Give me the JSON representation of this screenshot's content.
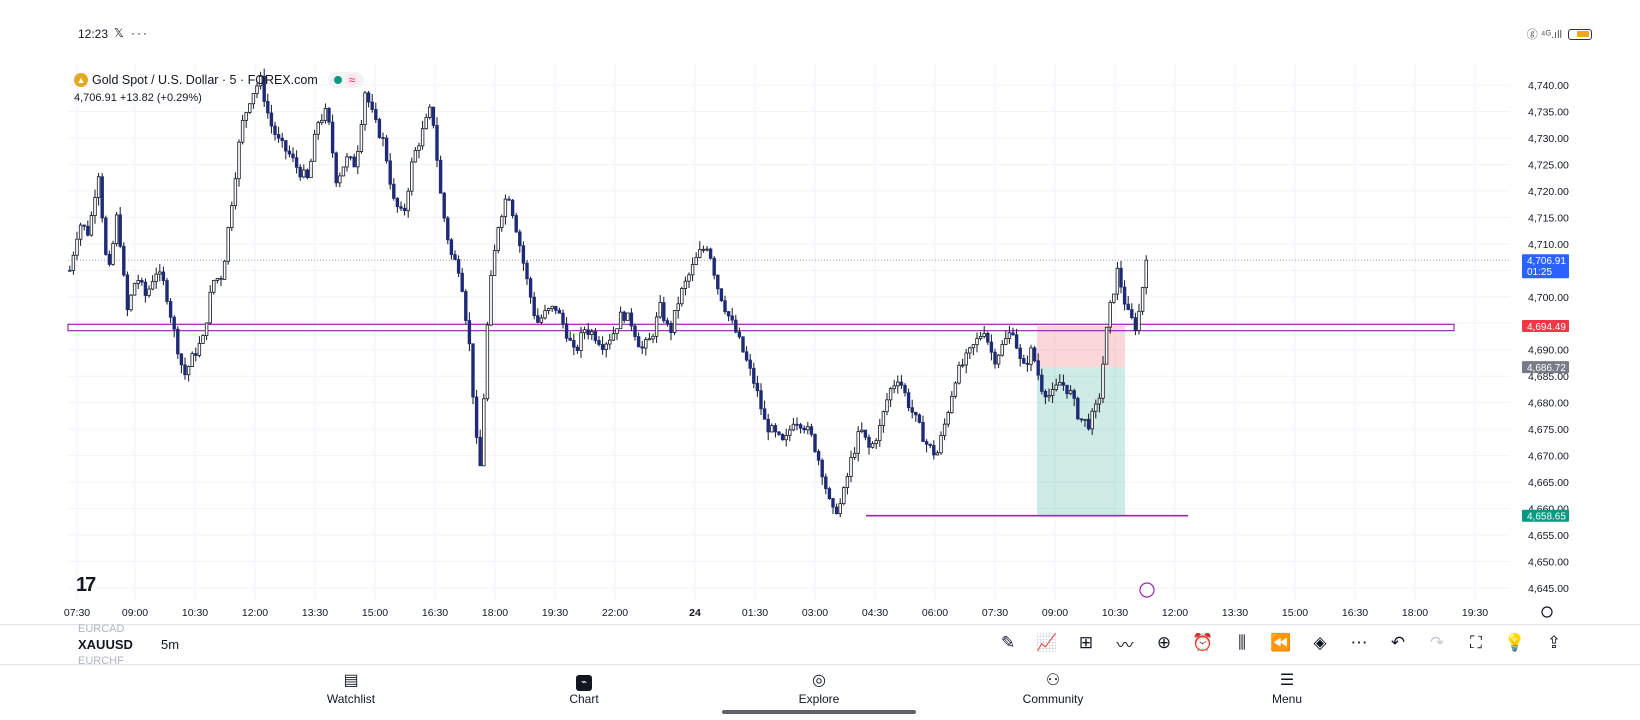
{
  "status": {
    "time": "12:23",
    "extra": "𝕏 ···",
    "signal": "ⓖ ⁴ᴳ.ıll"
  },
  "legend": {
    "symbol_desc": "Gold Spot / U.S. Dollar · 5 · FOREX.com",
    "price": "4,706.91",
    "change": "+13.82 (+0.29%)"
  },
  "logo": "17",
  "price_axis": {
    "ticks": [
      "4,740.00",
      "4,735.00",
      "4,730.00",
      "4,725.00",
      "4,720.00",
      "4,715.00",
      "4,710.00",
      "4,705.00",
      "4,700.00",
      "4,695.00",
      "4,690.00",
      "4,685.00",
      "4,680.00",
      "4,675.00",
      "4,670.00",
      "4,665.00",
      "4,660.00",
      "4,655.00",
      "4,650.00",
      "4,645.00"
    ],
    "labels": [
      {
        "price": "4,706.91",
        "sub": "01:25",
        "color": "#2962ff",
        "value": 4706.91
      },
      {
        "price": "4,694.49",
        "sub": "",
        "color": "#f23645",
        "value": 4694.49
      },
      {
        "price": "4,686.72",
        "sub": "",
        "color": "#787b86",
        "value": 4686.72
      },
      {
        "price": "4,658.65",
        "sub": "",
        "color": "#089981",
        "value": 4658.65
      }
    ]
  },
  "time_axis": {
    "ticks": [
      "07:30",
      "09:00",
      "10:30",
      "12:00",
      "13:30",
      "15:00",
      "16:30",
      "18:00",
      "19:30",
      "22:00",
      "24",
      "01:30",
      "03:00",
      "04:30",
      "06:00",
      "07:30",
      "09:00",
      "10:30",
      "12:00",
      "13:30",
      "15:00",
      "16:30",
      "18:00",
      "19:30"
    ]
  },
  "toolbar": {
    "symbol_prev": "EURCAD",
    "symbol": "XAUUSD",
    "symbol_next": "EURCHF",
    "interval": "5m",
    "icons": [
      "pencil-icon",
      "indicators-icon",
      "templates-icon",
      "drawing-tools-icon",
      "add-icon",
      "alert-icon",
      "chart-type-icon",
      "replay-icon",
      "layers-icon",
      "more-icon",
      "undo-icon",
      "redo-icon",
      "fullscreen-icon",
      "ideas-icon",
      "share-icon"
    ]
  },
  "nav": {
    "items": [
      {
        "label": "Watchlist",
        "icon": "watchlist-icon"
      },
      {
        "label": "Chart",
        "icon": "chart-icon"
      },
      {
        "label": "Explore",
        "icon": "explore-icon"
      },
      {
        "label": "Community",
        "icon": "community-icon"
      },
      {
        "label": "Menu",
        "icon": "menu-icon"
      }
    ]
  },
  "chart_data": {
    "type": "candlestick",
    "symbol": "XAUUSD",
    "interval": "5m",
    "ylim": [
      4643,
      4743
    ],
    "y_ticks": [
      4740,
      4735,
      4730,
      4725,
      4720,
      4715,
      4710,
      4705,
      4700,
      4695,
      4690,
      4685,
      4680,
      4675,
      4670,
      4665,
      4660,
      4655,
      4650,
      4645
    ],
    "last_price": 4706.91,
    "horizontal_lines": [
      {
        "name": "resistance zone top",
        "value": 4694.8,
        "color": "#9c27b0"
      },
      {
        "name": "resistance zone bottom",
        "value": 4693.6,
        "color": "#9c27b0"
      },
      {
        "name": "support line",
        "value": 4658.65,
        "color": "#9c27b0"
      }
    ],
    "position": {
      "type": "short",
      "entry": 4686.72,
      "stop": 4694.49,
      "target": 4658.65
    },
    "path_points": [
      [
        4705,
        4714
      ],
      [
        4712,
        4724
      ],
      [
        4703,
        4716
      ],
      [
        4697,
        4704
      ],
      [
        4700,
        4705
      ],
      [
        4702,
        4693
      ],
      [
        4685,
        4689
      ],
      [
        4692,
        4703
      ],
      [
        4704,
        4718
      ],
      [
        4732,
        4738
      ],
      [
        4741,
        4733
      ],
      [
        4729,
        4727
      ],
      [
        4724,
        4722
      ],
      [
        4733,
        4735
      ],
      [
        4722,
        4726
      ],
      [
        4725,
        4739
      ],
      [
        4733,
        4729
      ],
      [
        4718,
        4715
      ],
      [
        4726,
        4731
      ],
      [
        4736,
        4718
      ],
      [
        4708,
        4705
      ],
      [
        4690,
        4665
      ],
      [
        4700,
        4714
      ],
      [
        4720,
        4712
      ],
      [
        4703,
        4695
      ],
      [
        4697,
        4698
      ],
      [
        4694,
        4689
      ],
      [
        4694,
        4693
      ],
      [
        4691,
        4693
      ],
      [
        4697,
        4695
      ],
      [
        4690,
        4692
      ],
      [
        4698,
        4693
      ],
      [
        4700,
        4704
      ],
      [
        4708,
        4710
      ],
      [
        4702,
        4697
      ],
      [
        4693,
        4688
      ],
      [
        4683,
        4676
      ],
      [
        4674,
        4672
      ],
      [
        4677,
        4676
      ],
      [
        4673,
        4667
      ],
      [
        4659,
        4661
      ],
      [
        4669,
        4675
      ],
      [
        4671,
        4675
      ],
      [
        4682,
        4685
      ],
      [
        4680,
        4676
      ],
      [
        4672,
        4670
      ],
      [
        4677,
        4685
      ],
      [
        4688,
        4691
      ],
      [
        4694,
        4688
      ],
      [
        4691,
        4694
      ],
      [
        4686,
        4690
      ],
      [
        4683,
        4681
      ],
      [
        4684,
        4682
      ],
      [
        4677,
        4676
      ],
      [
        4680,
        4696
      ],
      [
        4705,
        4697
      ],
      [
        4694,
        4706.91
      ]
    ]
  }
}
